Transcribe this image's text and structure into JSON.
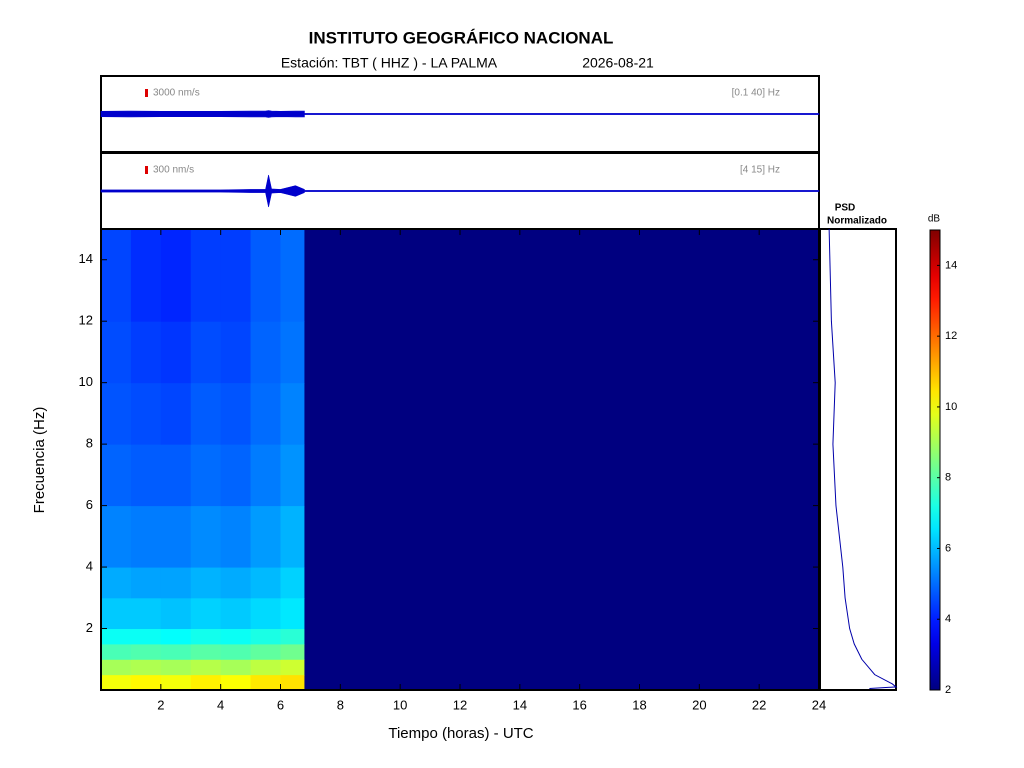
{
  "chart_data": {
    "type": "heatmap",
    "title": "INSTITUTO GEOGRÁFICO NACIONAL",
    "station": "Estación:  TBT ( HHZ ) - LA PALMA",
    "date": "2026-08-21",
    "x_label": "Tiempo (horas) - UTC",
    "y_label": "Frecuencia  (Hz)",
    "xlim": [
      0,
      24
    ],
    "xticks": [
      2,
      4,
      6,
      8,
      10,
      12,
      14,
      16,
      18,
      20,
      22,
      24
    ],
    "ylim": [
      0,
      15
    ],
    "yticks": [
      2,
      4,
      6,
      8,
      10,
      12,
      14
    ],
    "x_edges": [
      0,
      1,
      2,
      3,
      4,
      5,
      6,
      6.8,
      24
    ],
    "y_edges": [
      0,
      0.5,
      1,
      1.5,
      2,
      3,
      4,
      6,
      8,
      10,
      12,
      15
    ],
    "z": [
      [
        10,
        10.2,
        10,
        10.3,
        10.1,
        10.4,
        10.5,
        2
      ],
      [
        9,
        9.1,
        9,
        9.2,
        9,
        9.3,
        9.5,
        2
      ],
      [
        7.8,
        7.9,
        7.8,
        8,
        7.9,
        8.1,
        8.3,
        2
      ],
      [
        7,
        7,
        6.9,
        7.1,
        7,
        7.2,
        7.4,
        2
      ],
      [
        6.2,
        6.2,
        6.1,
        6.3,
        6.2,
        6.4,
        6.6,
        2
      ],
      [
        5.8,
        5.7,
        5.7,
        5.9,
        5.8,
        6,
        6.3,
        2
      ],
      [
        5.3,
        5.2,
        5.2,
        5.4,
        5.3,
        5.6,
        5.9,
        2
      ],
      [
        4.9,
        4.8,
        4.8,
        5,
        4.9,
        5.2,
        5.5,
        2
      ],
      [
        4.7,
        4.6,
        4.5,
        4.8,
        4.7,
        5,
        5.3,
        2
      ],
      [
        4.6,
        4.4,
        4.3,
        4.6,
        4.5,
        4.9,
        5.1,
        2
      ],
      [
        4.5,
        4.2,
        4.1,
        4.4,
        4.4,
        4.8,
        5,
        2
      ]
    ],
    "colorbar": {
      "label": "dB",
      "clim": [
        2,
        15
      ],
      "ticks": [
        2,
        4,
        6,
        8,
        10,
        12,
        14
      ]
    },
    "traces": [
      {
        "scale": {
          "value": 3000,
          "label": "3000 nm/s"
        },
        "band": "[0.1 40] Hz",
        "color": "#0000cc",
        "x": [
          0,
          1,
          2,
          3,
          4,
          5,
          5.5,
          5.6,
          5.7,
          6,
          6.5,
          6.8,
          6.8,
          24
        ],
        "amplitude": [
          1000,
          1100,
          1000,
          1000,
          1000,
          1100,
          1100,
          1300,
          1100,
          1000,
          1100,
          1100,
          0,
          0
        ]
      },
      {
        "scale": {
          "value": 300,
          "label": "300 nm/s"
        },
        "band": "[4 15] Hz",
        "color": "#0000cc",
        "x": [
          0,
          1,
          2,
          3,
          4,
          5,
          5.5,
          5.6,
          5.7,
          6,
          6.5,
          6.8,
          6.8,
          24
        ],
        "amplitude": [
          40,
          40,
          40,
          40,
          40,
          60,
          60,
          600,
          80,
          60,
          200,
          60,
          0,
          0
        ]
      }
    ],
    "psd": {
      "title": "PSD",
      "subtitle": "Normalizado",
      "color": "#0000aa",
      "xlim": [
        0,
        1
      ],
      "freq": [
        0.05,
        0.1,
        0.2,
        0.5,
        1,
        1.5,
        2,
        3,
        4,
        6,
        8,
        10,
        12,
        14,
        15
      ],
      "values": [
        0.65,
        1,
        0.95,
        0.72,
        0.55,
        0.45,
        0.39,
        0.33,
        0.3,
        0.21,
        0.17,
        0.2,
        0.15,
        0.13,
        0.12
      ]
    }
  }
}
